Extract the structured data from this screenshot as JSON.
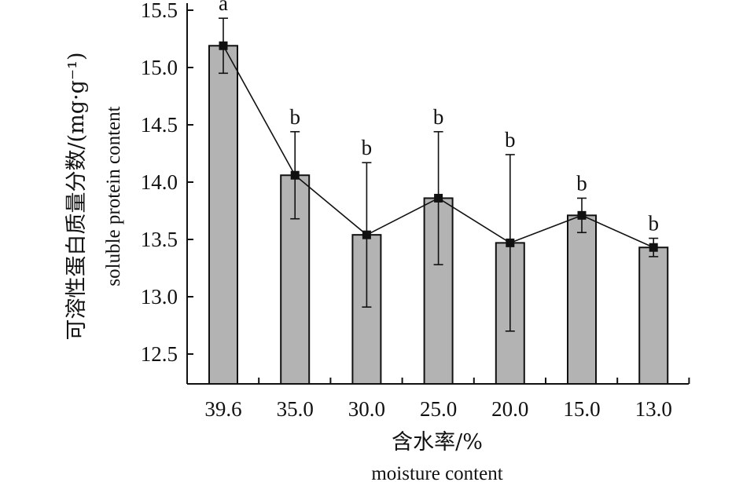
{
  "chart_data": {
    "type": "bar",
    "categories": [
      "39.6",
      "35.0",
      "30.0",
      "25.0",
      "20.0",
      "15.0",
      "13.0"
    ],
    "values": [
      15.19,
      14.06,
      13.54,
      13.86,
      13.47,
      13.71,
      13.43
    ],
    "errors": [
      0.24,
      0.38,
      0.63,
      0.58,
      0.77,
      0.15,
      0.08
    ],
    "significance": [
      "a",
      "b",
      "b",
      "b",
      "b",
      "b",
      "b"
    ],
    "line_overlay": true,
    "bar_color": "#b3b3b3",
    "line_color": "#111111",
    "ylim": [
      12.3,
      15.5
    ],
    "yticks": [
      "12.5",
      "13.0",
      "13.5",
      "14.0",
      "14.5",
      "15.0",
      "15.5"
    ],
    "xlabel": "含水率/%",
    "xlabel_en": "moisture content",
    "ylabel": "可溶性蛋白质量分数/(mg·g⁻¹)",
    "ylabel_en": "soluble protein content",
    "grid": false
  }
}
